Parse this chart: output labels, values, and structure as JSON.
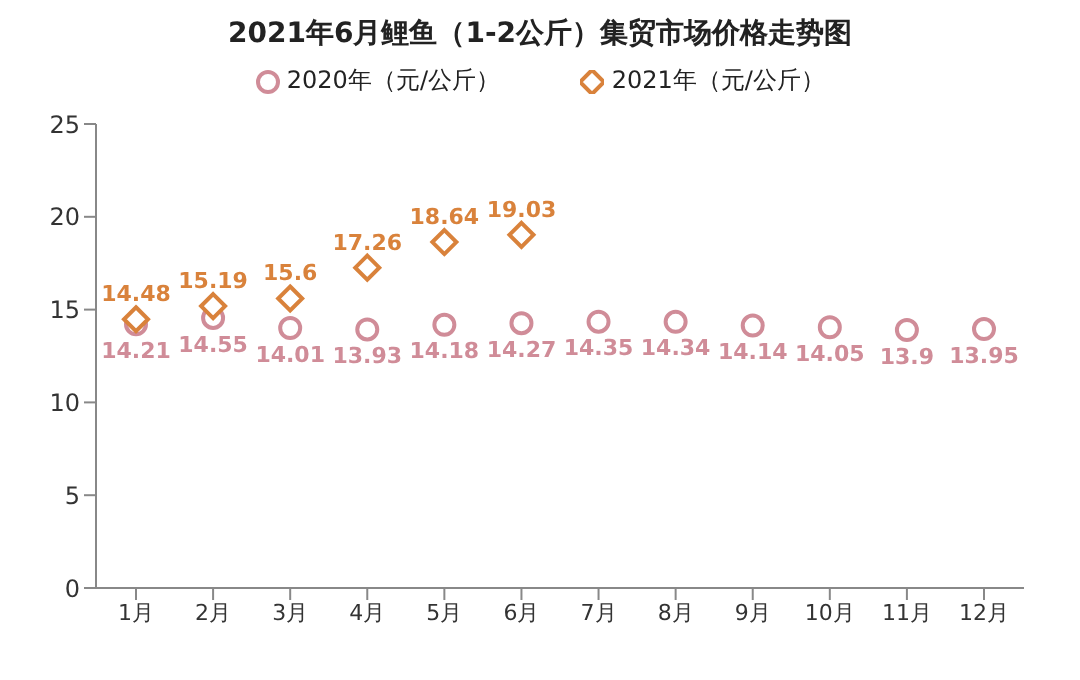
{
  "chart_data": {
    "type": "scatter",
    "title": "2021年6月鲤鱼（1-2公斤）集贸市场价格走势图",
    "categories": [
      "1月",
      "2月",
      "3月",
      "4月",
      "5月",
      "6月",
      "7月",
      "8月",
      "9月",
      "10月",
      "11月",
      "12月"
    ],
    "series": [
      {
        "name": "2020年（元/公斤）",
        "color": "#d08c98",
        "marker": "circle",
        "values": [
          14.21,
          14.55,
          14.01,
          13.93,
          14.18,
          14.27,
          14.35,
          14.34,
          14.14,
          14.05,
          13.9,
          13.95
        ]
      },
      {
        "name": "2021年（元/公斤）",
        "color": "#d9823b",
        "marker": "diamond",
        "values": [
          14.48,
          15.19,
          15.6,
          17.26,
          18.64,
          19.03,
          null,
          null,
          null,
          null,
          null,
          null
        ]
      }
    ],
    "ylim": [
      0,
      25
    ],
    "yticks": [
      0,
      5,
      10,
      15,
      20,
      25
    ],
    "grid": false,
    "legend": "top",
    "data_labels": true
  }
}
